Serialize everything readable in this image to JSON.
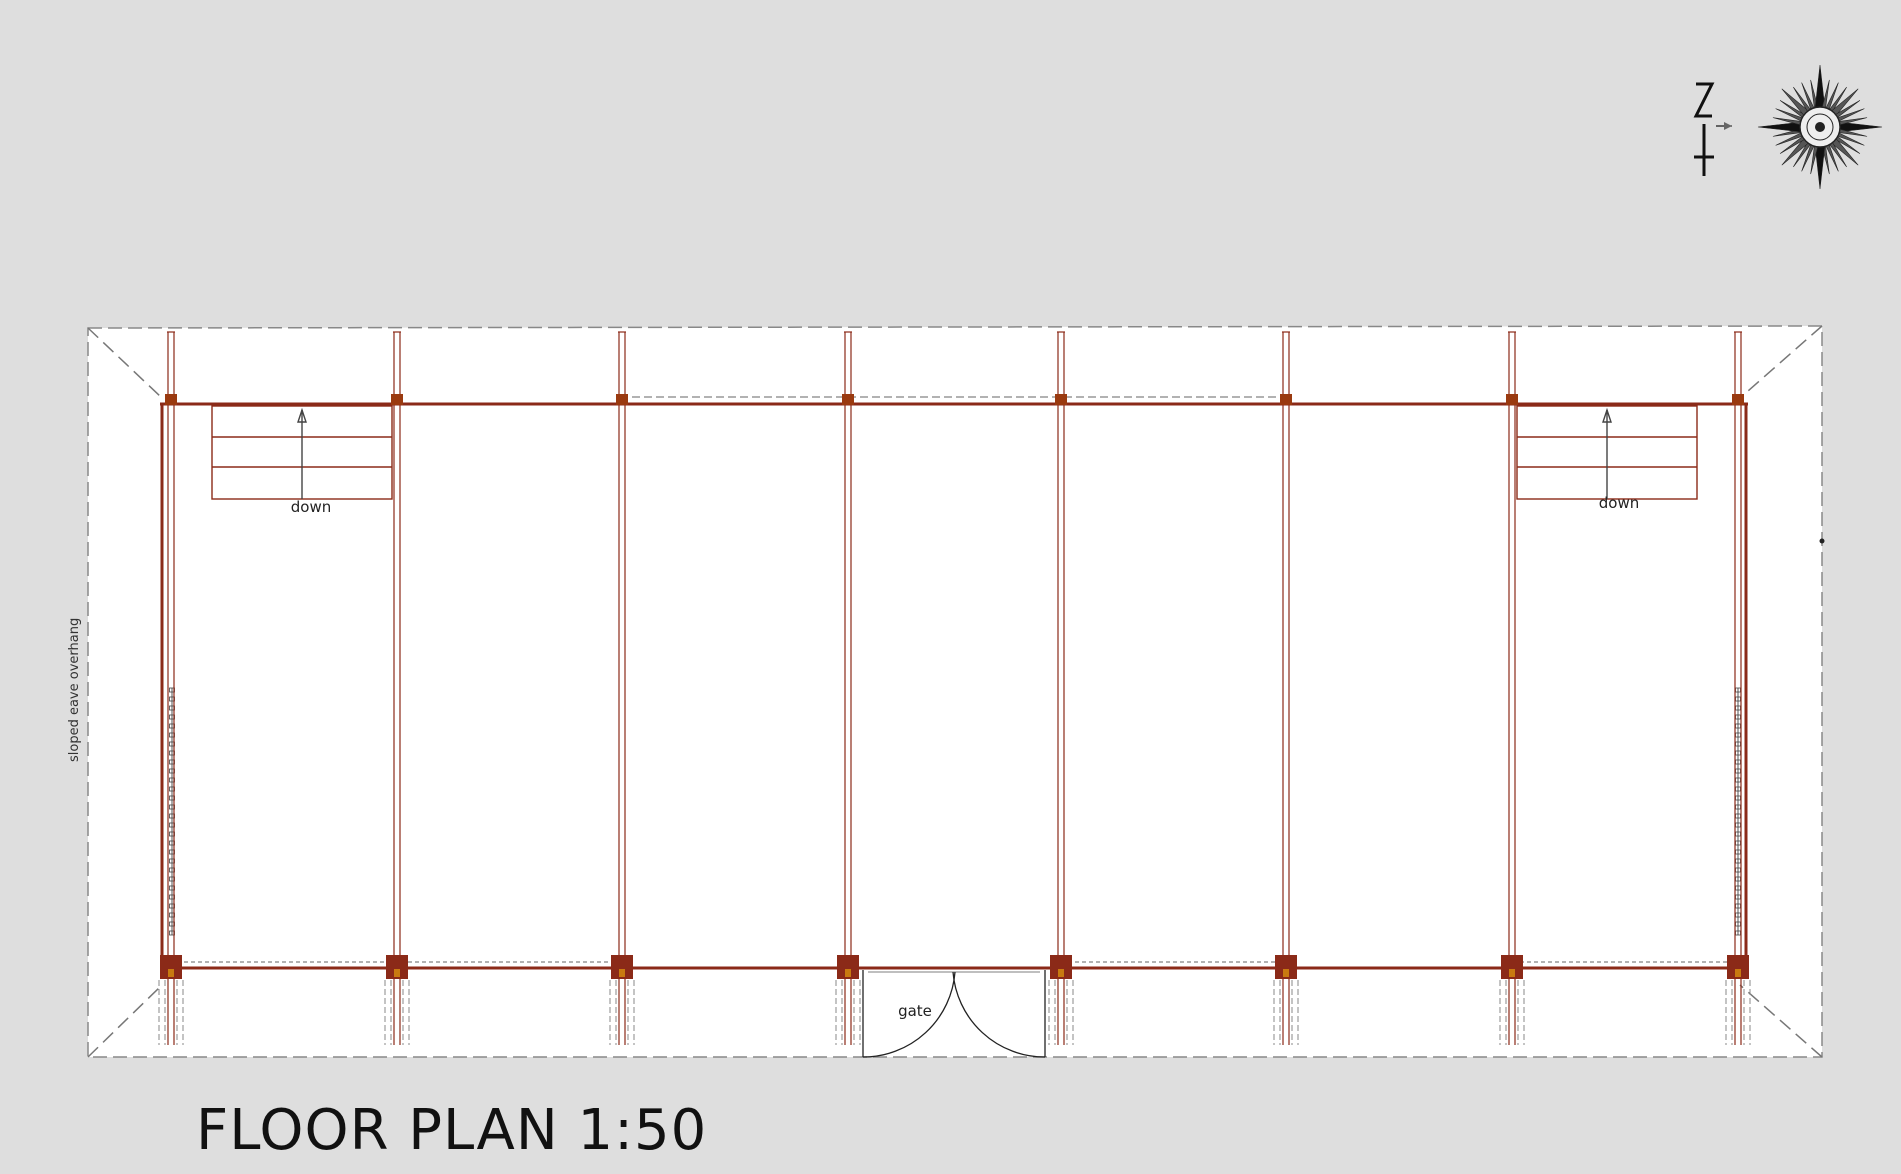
{
  "drawing_title": "FLOOR PLAN 1:50",
  "labels": {
    "stair_left": "down",
    "stair_right": "down",
    "gate": "gate",
    "eave_note": "sloped eave overhang"
  },
  "compass": {
    "icon": "compass-rose-icon",
    "north_letter_glyphs": "N"
  },
  "colors": {
    "background": "#dedede",
    "sheet": "#ffffff",
    "structure": "#8b2a18",
    "post": "#9a3a10",
    "line": "#555555"
  }
}
